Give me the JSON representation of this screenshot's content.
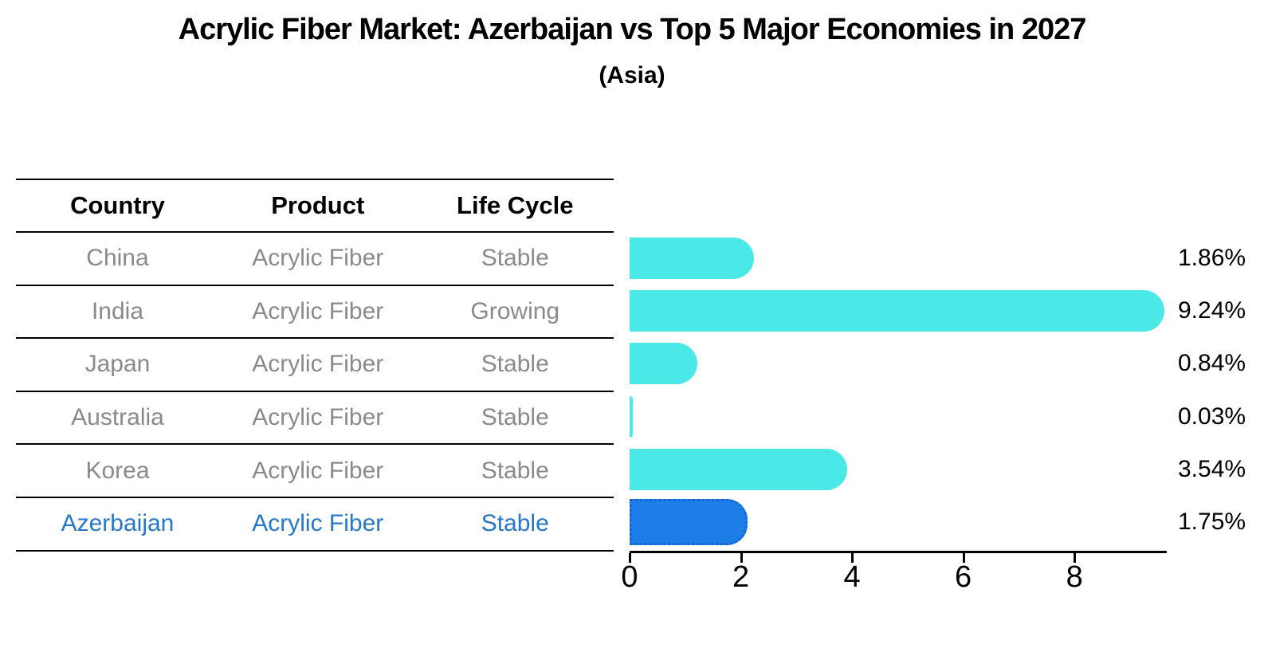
{
  "title": "Acrylic Fiber Market: Azerbaijan vs Top 5 Major Economies in 2027",
  "subtitle": "(Asia)",
  "table": {
    "headers": [
      "Country",
      "Product",
      "Life Cycle"
    ],
    "rows": [
      {
        "country": "China",
        "product": "Acrylic Fiber",
        "life_cycle": "Stable",
        "highlight": false
      },
      {
        "country": "India",
        "product": "Acrylic Fiber",
        "life_cycle": "Growing",
        "highlight": false
      },
      {
        "country": "Japan",
        "product": "Acrylic Fiber",
        "life_cycle": "Stable",
        "highlight": false
      },
      {
        "country": "Australia",
        "product": "Acrylic Fiber",
        "life_cycle": "Stable",
        "highlight": false
      },
      {
        "country": "Korea",
        "product": "Acrylic Fiber",
        "life_cycle": "Stable",
        "highlight": false
      },
      {
        "country": "Azerbaijan",
        "product": "Acrylic Fiber",
        "life_cycle": "Stable",
        "highlight": true
      }
    ]
  },
  "chart_data": {
    "type": "bar",
    "orientation": "horizontal",
    "title": "Acrylic Fiber Market: Azerbaijan vs Top 5 Major Economies in 2027",
    "subtitle": "(Asia)",
    "categories": [
      "China",
      "India",
      "Japan",
      "Australia",
      "Korea",
      "Azerbaijan"
    ],
    "values": [
      1.86,
      9.24,
      0.84,
      0.03,
      3.54,
      1.75
    ],
    "value_labels": [
      "1.86%",
      "9.24%",
      "0.84%",
      "0.03%",
      "3.54%",
      "1.75%"
    ],
    "xlim": [
      0,
      9.66
    ],
    "xticks": [
      0,
      2,
      4,
      6,
      8
    ],
    "grid": false,
    "legend": "none",
    "bar_color": "#4BE8E8",
    "highlight_bar_color": "#1E7EE8",
    "highlight_index": 5
  },
  "colors": {
    "bar_cyan": "#4BE8E8",
    "bar_blue": "#1E7EE8",
    "highlight_text": "#2577C9",
    "row_text": "#8A8A8A",
    "header_text": "#000000",
    "axis": "#000000"
  }
}
